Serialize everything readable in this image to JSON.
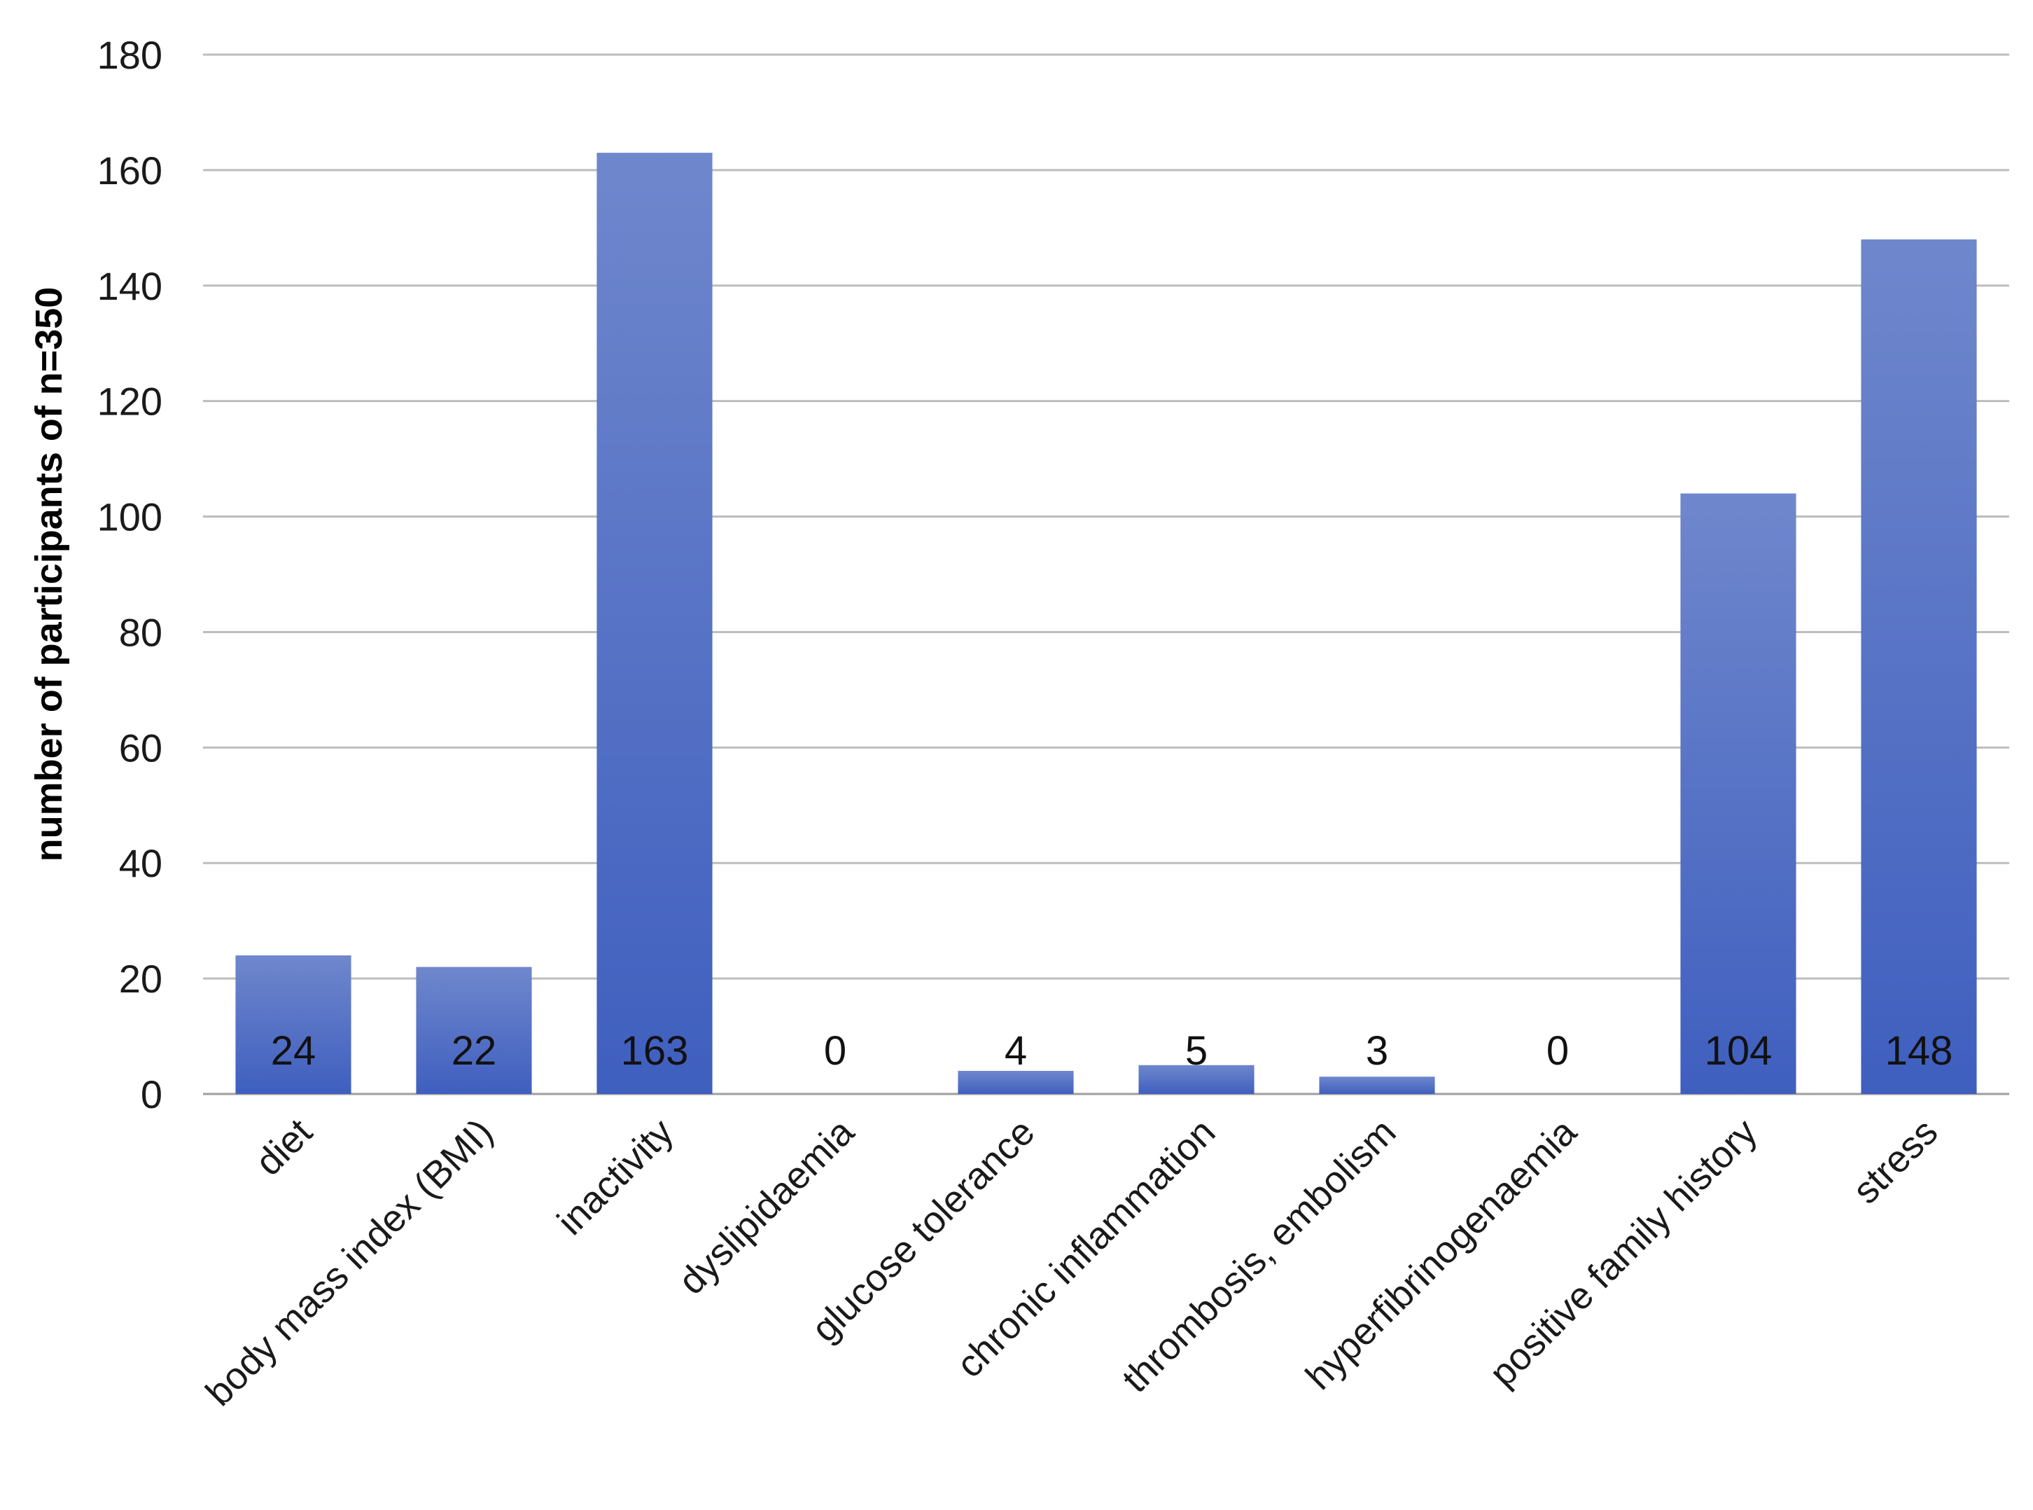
{
  "chart_data": {
    "type": "bar",
    "ylabel": "number of participants of n=350",
    "xlabel": "",
    "ylim": [
      0,
      180
    ],
    "yticks": [
      0,
      20,
      40,
      60,
      80,
      100,
      120,
      140,
      160,
      180
    ],
    "grid": true,
    "legend": "none",
    "categories": [
      "diet",
      "body mass index (BMI)",
      "inactivity",
      "dyslipidaemia",
      "glucose tolerance",
      "chronic inflammation",
      "thrombosis, embolism",
      "hyperfibrinogenaemia",
      "positive family history",
      "stress"
    ],
    "values": [
      24,
      22,
      163,
      0,
      4,
      5,
      3,
      0,
      104,
      148
    ],
    "colors": {
      "bar_top": "#6f87cc",
      "bar_bottom": "#3f5fbf"
    }
  }
}
